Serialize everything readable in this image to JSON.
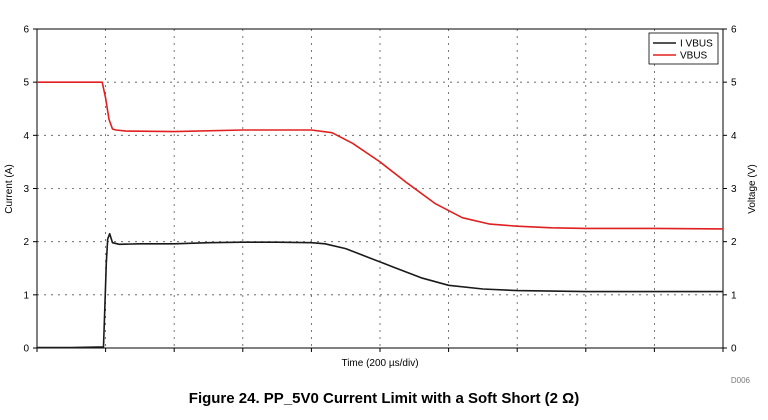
{
  "figure": {
    "caption": "Figure 24.  PP_5V0 Current Limit with a Soft Short (2 Ω)",
    "chart_id": "D006"
  },
  "chart_data": {
    "type": "line",
    "xlabel": "Time (200 µs/div)",
    "ylabel_left": "Current (A)",
    "ylabel_right": "Voltage (V)",
    "xlim": [
      0,
      10
    ],
    "ylim_left": [
      0,
      6
    ],
    "ylim_right": [
      0,
      6
    ],
    "yticks_left": [
      "0",
      "1",
      "2",
      "3",
      "4",
      "5",
      "6"
    ],
    "yticks_right": [
      "0",
      "1",
      "2",
      "3",
      "4",
      "5",
      "6"
    ],
    "x_divisions": 10,
    "grid": true,
    "legend_position": "top-right",
    "series": [
      {
        "name": "I VBUS",
        "color": "#1a1a1a",
        "axis": "left",
        "x": [
          0,
          0.5,
          0.97,
          0.99,
          1.01,
          1.03,
          1.06,
          1.1,
          1.2,
          1.5,
          2,
          2.5,
          3,
          3.5,
          4,
          4.2,
          4.5,
          4.8,
          5.2,
          5.6,
          6,
          6.5,
          7,
          7.5,
          8,
          8.5,
          9,
          9.5,
          10
        ],
        "values": [
          0.01,
          0.01,
          0.02,
          0.8,
          1.6,
          2.05,
          2.15,
          1.98,
          1.95,
          1.96,
          1.96,
          1.98,
          1.99,
          1.99,
          1.98,
          1.96,
          1.87,
          1.72,
          1.52,
          1.32,
          1.18,
          1.11,
          1.08,
          1.07,
          1.06,
          1.06,
          1.06,
          1.06,
          1.06
        ]
      },
      {
        "name": "VBUS",
        "color": "#e02020",
        "axis": "right",
        "x": [
          0,
          0.5,
          0.95,
          1.0,
          1.05,
          1.1,
          1.15,
          1.3,
          2,
          3,
          4,
          4.3,
          4.6,
          5,
          5.4,
          5.8,
          6.2,
          6.6,
          7,
          7.5,
          8,
          9,
          10
        ],
        "values": [
          5.0,
          5.0,
          5.0,
          4.7,
          4.3,
          4.12,
          4.1,
          4.08,
          4.07,
          4.1,
          4.1,
          4.05,
          3.85,
          3.5,
          3.1,
          2.72,
          2.45,
          2.33,
          2.29,
          2.26,
          2.25,
          2.25,
          2.24
        ]
      }
    ]
  }
}
